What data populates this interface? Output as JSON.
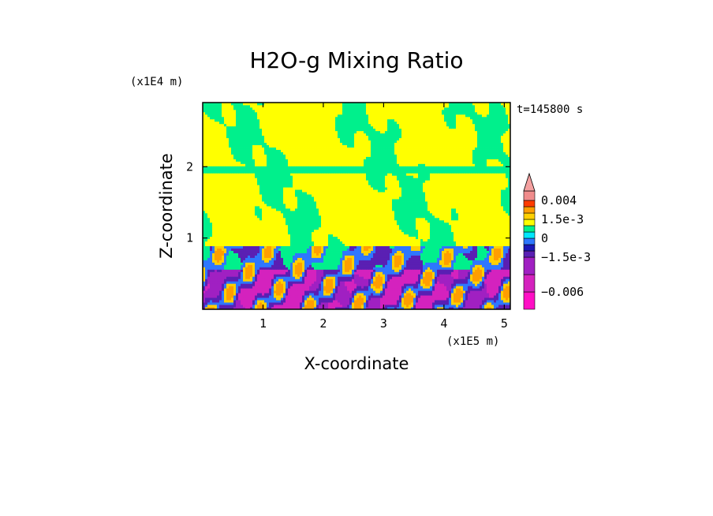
{
  "chart_data": {
    "type": "heatmap",
    "title": "H2O-g Mixing Ratio",
    "xlabel": "X-coordinate",
    "ylabel": "Z-coordinate",
    "x_scale_label": "(x1E5 m)",
    "y_scale_label": "(x1E4 m)",
    "time_label": "t=145800 s",
    "xlim": [
      0,
      5.1
    ],
    "ylim": [
      0,
      2.9
    ],
    "x_ticks": [
      1,
      2,
      3,
      4,
      5
    ],
    "x_tick_labels": [
      "1",
      "2",
      "3",
      "4",
      "5"
    ],
    "y_ticks": [
      1,
      2
    ],
    "y_tick_labels": [
      "1",
      "2"
    ],
    "colorbar": {
      "levels": [
        -0.009,
        -0.006,
        -0.003,
        -0.0015,
        -0.001,
        -0.0005,
        0,
        0.0005,
        0.001,
        0.0015,
        0.002,
        0.003,
        0.004
      ],
      "colors": [
        "#ff0fc5",
        "#d422be",
        "#a020c2",
        "#5a1fb3",
        "#1b17b8",
        "#2e77ff",
        "#00e7ff",
        "#00f08c",
        "#ffff00",
        "#ffd000",
        "#ff9e00",
        "#ff3c00",
        "#f08c8c"
      ],
      "labeled_ticks": [
        {
          "value": 0.004,
          "label": "0.004"
        },
        {
          "value": 0.0015,
          "label": "1.5e-3"
        },
        {
          "value": 0,
          "label": "0"
        },
        {
          "value": -0.0015,
          "label": "−1.5e-3"
        },
        {
          "value": -0.006,
          "label": "−0.006"
        }
      ],
      "extend_top": true
    },
    "field_regions": [
      {
        "description": "upper layer",
        "z_range": [
          2.0,
          2.9
        ],
        "dominant_value": 0.001,
        "secondary_value": 0.0005
      },
      {
        "description": "thin band",
        "z_range": [
          1.9,
          2.0
        ],
        "dominant_value": 0.0005
      },
      {
        "description": "middle layer",
        "z_range": [
          0.9,
          1.9
        ],
        "dominant_value": 0.001,
        "secondary_value": 0.0005
      },
      {
        "description": "lower mixed layer",
        "z_range": [
          0.55,
          0.9
        ],
        "dominant_value": -0.0005,
        "secondary_value": 0.0015
      },
      {
        "description": "surface layer",
        "z_range": [
          0,
          0.55
        ],
        "dominant_value": -0.003,
        "secondary_value": -0.0015
      }
    ]
  }
}
